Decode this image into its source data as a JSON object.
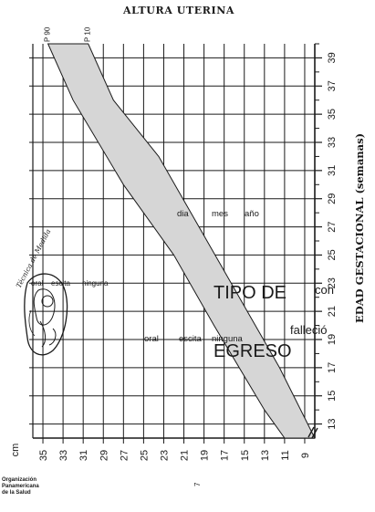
{
  "page": {
    "title": "ALTURA UTERINA",
    "ylabel": "EDAD GESTACIONAL (semanas)",
    "page_number": "7",
    "logo_lines": [
      "Organización",
      "Panamericana",
      "de la Salud"
    ],
    "technician_stamp": "Técnica de Medida"
  },
  "chart_data": {
    "type": "area",
    "title": "ALTURA UTERINA",
    "xlabel": "cm",
    "ylabel": "EDAD GESTACIONAL (semanas)",
    "x_tick_labels": [
      "35",
      "33",
      "31",
      "29",
      "27",
      "25",
      "23",
      "21",
      "19",
      "17",
      "15",
      "13",
      "11",
      "9"
    ],
    "x_range": [
      36,
      8
    ],
    "y_tick_labels": [
      "39",
      "37",
      "35",
      "33",
      "31",
      "29",
      "27",
      "25",
      "23",
      "21",
      "19",
      "17",
      "15",
      "13"
    ],
    "y_range": [
      12,
      40
    ],
    "grid": true,
    "band_series": [
      {
        "name": "P 90",
        "points": [
          [
            34.5,
            40
          ],
          [
            32,
            36
          ],
          [
            27,
            30
          ],
          [
            22,
            25
          ],
          [
            18,
            20
          ],
          [
            13,
            14
          ],
          [
            11,
            12
          ]
        ]
      },
      {
        "name": "P 10",
        "points": [
          [
            30.5,
            40
          ],
          [
            28,
            36
          ],
          [
            23.5,
            32
          ],
          [
            19.5,
            27
          ],
          [
            15.5,
            22
          ],
          [
            11.5,
            17
          ],
          [
            8,
            12
          ]
        ]
      }
    ]
  },
  "form": {
    "date_labels": [
      "dia",
      "mes",
      "año"
    ],
    "feeding_options": [
      "oral",
      "escita",
      "ninguna"
    ],
    "discharge_title_lines": [
      "TIPO DE",
      "EGRESO"
    ],
    "discharge_feeding": [
      "oral",
      "escita",
      "ninguna"
    ],
    "deceased": "falleció",
    "side_text": "con"
  },
  "colors": {
    "band": "#d6d6d6",
    "grid": "#1a1a1a",
    "ink": "#1a1a1a"
  }
}
